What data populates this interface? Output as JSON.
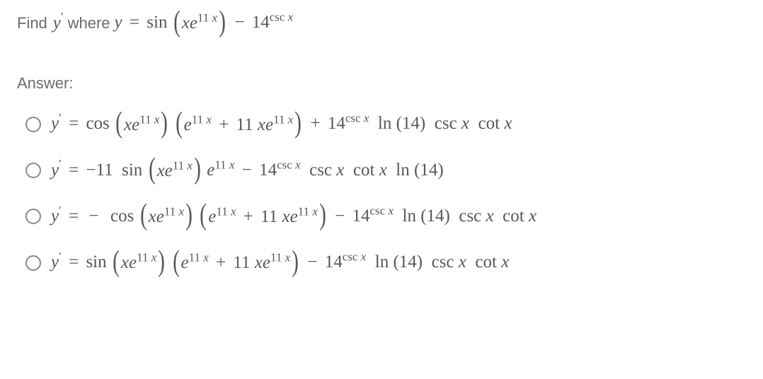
{
  "question_prefix": "Find",
  "question_where": "where",
  "answer_label": "Answer:",
  "math": {
    "y_prime": "y",
    "prime_mark": "′",
    "eq": " = ",
    "y": "y",
    "sin": "sin",
    "cos": "cos",
    "csc": "csc",
    "cot": "cot",
    "ln": "ln",
    "x": "x",
    "e": "e",
    "minus": " − ",
    "plus": " + ",
    "neg": "−",
    "fourteen": "14",
    "eleven_num": "11",
    "eleven_exp": "11",
    "ln14": "(14)",
    "open": "(",
    "close": ")"
  },
  "options": [
    {
      "leading": "",
      "trig": "cos",
      "inner_sign": "plus",
      "tail_sign": "plus"
    },
    {
      "is_simple": true
    },
    {
      "leading": "neg",
      "trig": "cos",
      "inner_sign": "plus",
      "tail_sign": "minus"
    },
    {
      "leading": "",
      "trig": "sin",
      "inner_sign": "plus",
      "tail_sign": "minus"
    }
  ],
  "colors": {
    "text": "#6b6b6b",
    "math": "#585858",
    "radio_border": "#8a8a8a",
    "background": "#ffffff"
  },
  "fonts": {
    "ui": "Arial",
    "math": "Times New Roman",
    "ui_size_pt": 16,
    "math_size_pt": 19,
    "big_paren_size_pt": 32
  }
}
